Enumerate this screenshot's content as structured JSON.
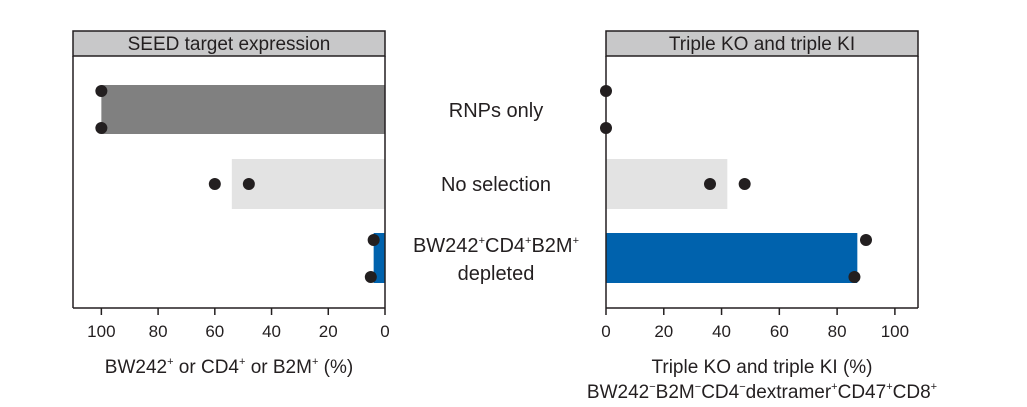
{
  "categories": [
    "RNPs only",
    "No selection",
    [
      "BW242",
      "+",
      "CD4",
      "+",
      "B2M",
      "+",
      "depleted"
    ]
  ],
  "chart_data": [
    {
      "type": "bar",
      "orientation": "horizontal",
      "title": "SEED target expression",
      "xlabel": [
        "BW242",
        "+",
        " or CD4",
        "+",
        " or B2M",
        "+",
        " (%)"
      ],
      "xlim": [
        110,
        0
      ],
      "xticks": [
        100,
        80,
        60,
        40,
        20,
        0
      ],
      "categories": [
        "RNPs only",
        "No selection",
        "BW242+CD4+B2M+ depleted"
      ],
      "values": [
        100,
        54,
        4
      ],
      "points": [
        [
          100,
          100
        ],
        [
          60,
          48
        ],
        [
          4,
          5
        ]
      ],
      "colors": [
        "#808080",
        "#e3e3e3",
        "#0062ad"
      ]
    },
    {
      "type": "bar",
      "orientation": "horizontal",
      "title": "Triple KO and triple KI",
      "xlabel": [
        "Triple KO and triple KI (%)"
      ],
      "xlabel2": [
        "BW242",
        "−",
        "B2M",
        "−",
        "CD4",
        "−",
        "dextramer",
        "+",
        "CD47",
        "+",
        "CD8",
        "+"
      ],
      "xlim": [
        0,
        108
      ],
      "xticks": [
        0,
        20,
        40,
        60,
        80,
        100
      ],
      "categories": [
        "RNPs only",
        "No selection",
        "BW242+CD4+B2M+ depleted"
      ],
      "values": [
        0,
        42,
        87
      ],
      "points": [
        [
          0,
          0
        ],
        [
          36,
          48
        ],
        [
          90,
          86
        ]
      ],
      "colors": [
        "#808080",
        "#e3e3e3",
        "#0062ad"
      ]
    }
  ],
  "colors": {
    "panel_header_bg": "#c8c8c9",
    "ink": "#231f20"
  }
}
